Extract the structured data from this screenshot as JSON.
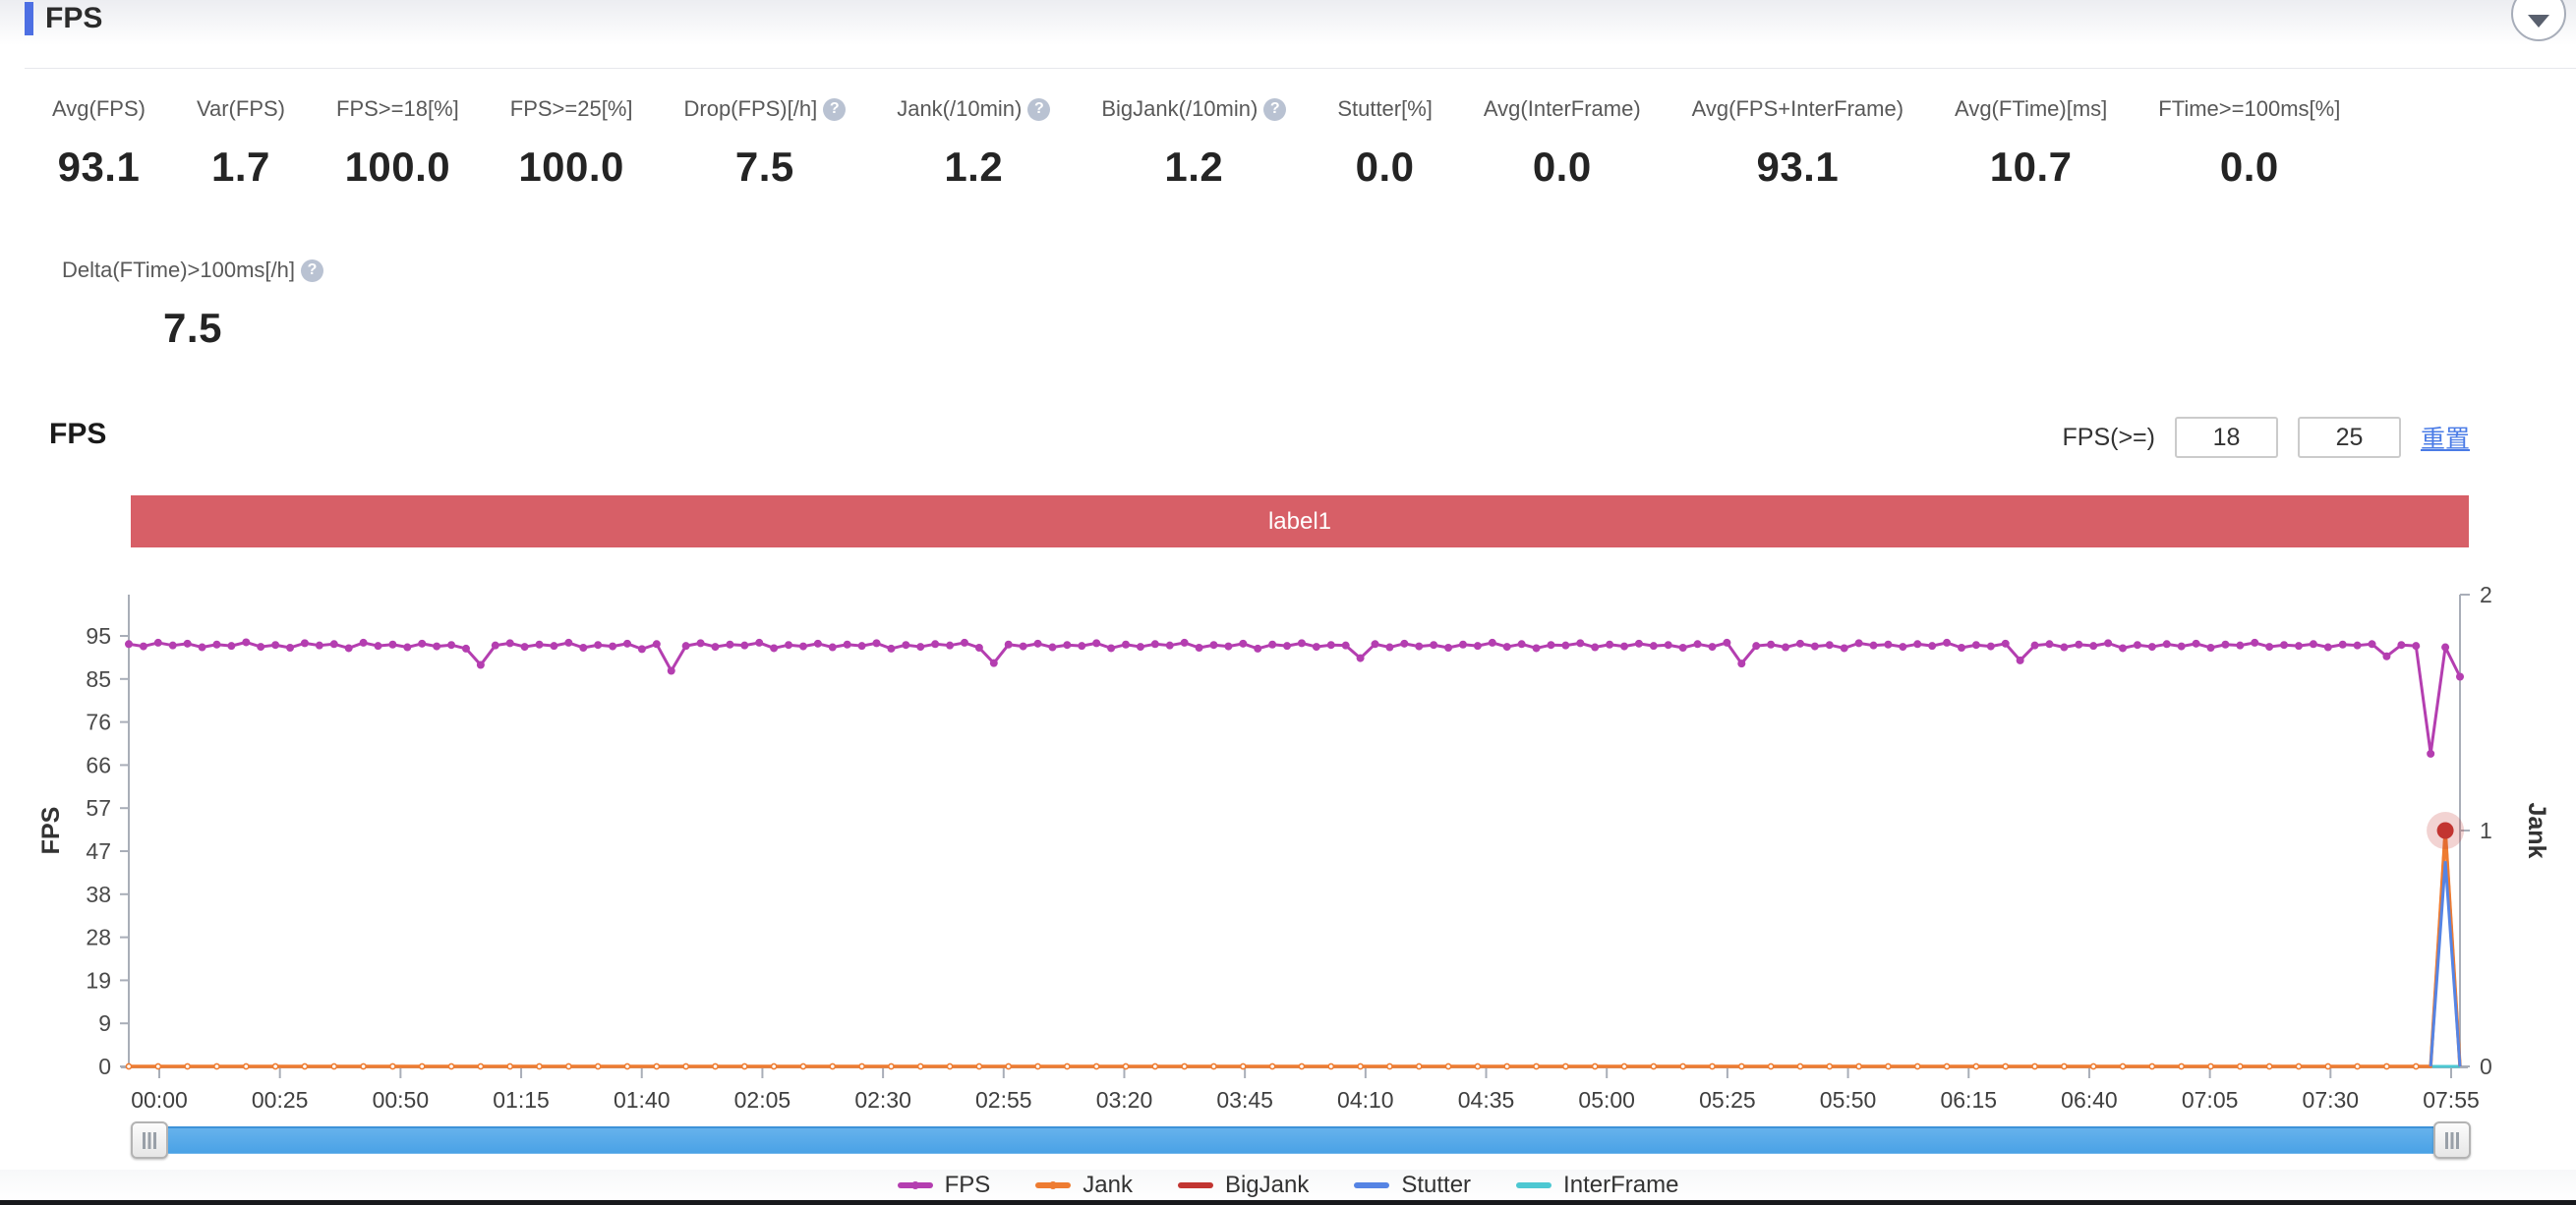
{
  "header": {
    "title": "FPS",
    "collapse_icon": "chevron-down"
  },
  "metrics": {
    "row1": [
      {
        "label": "Avg(FPS)",
        "value": "93.1",
        "help": false
      },
      {
        "label": "Var(FPS)",
        "value": "1.7",
        "help": false
      },
      {
        "label": "FPS>=18[%]",
        "value": "100.0",
        "help": false
      },
      {
        "label": "FPS>=25[%]",
        "value": "100.0",
        "help": false
      },
      {
        "label": "Drop(FPS)[/h]",
        "value": "7.5",
        "help": true
      },
      {
        "label": "Jank(/10min)",
        "value": "1.2",
        "help": true
      },
      {
        "label": "BigJank(/10min)",
        "value": "1.2",
        "help": true
      },
      {
        "label": "Stutter[%]",
        "value": "0.0",
        "help": false
      },
      {
        "label": "Avg(InterFrame)",
        "value": "0.0",
        "help": false
      },
      {
        "label": "Avg(FPS+InterFrame)",
        "value": "93.1",
        "help": false
      },
      {
        "label": "Avg(FTime)[ms]",
        "value": "10.7",
        "help": false
      },
      {
        "label": "FTime>=100ms[%]",
        "value": "0.0",
        "help": false
      }
    ],
    "row2": [
      {
        "label": "Delta(FTime)>100ms[/h]",
        "value": "7.5",
        "help": true
      }
    ]
  },
  "chart_controls": {
    "section_title": "FPS",
    "threshold_label": "FPS(>=)",
    "threshold_low": "18",
    "threshold_high": "25",
    "reset_label": "重置"
  },
  "banner": {
    "text": "label1",
    "color": "#d75f67"
  },
  "chart_data": {
    "type": "line",
    "title": "FPS",
    "x_ticks": [
      "00:00",
      "00:25",
      "00:50",
      "01:15",
      "01:40",
      "02:05",
      "02:30",
      "02:55",
      "03:20",
      "03:45",
      "04:10",
      "04:35",
      "05:00",
      "05:25",
      "05:50",
      "06:15",
      "06:40",
      "07:05",
      "07:30",
      "07:55"
    ],
    "y_left": {
      "name": "FPS",
      "ticks": [
        0,
        9,
        19,
        28,
        38,
        47,
        57,
        66,
        76,
        85,
        95
      ],
      "max": 95
    },
    "y_right": {
      "name": "Jank",
      "ticks": [
        0,
        1,
        2
      ],
      "max": 2
    },
    "grid": false,
    "legend_position": "bottom",
    "series": [
      {
        "name": "FPS",
        "color": "#b43eb0",
        "axis": "left",
        "values": [
          93.2,
          92.7,
          93.5,
          92.9,
          93.3,
          92.5,
          93.1,
          92.8,
          93.6,
          92.6,
          93.0,
          92.4,
          93.4,
          92.9,
          93.2,
          92.3,
          93.5,
          92.8,
          93.1,
          92.5,
          93.3,
          92.7,
          93.0,
          92.2,
          88.6,
          92.9,
          93.4,
          92.6,
          93.1,
          92.8,
          93.5,
          92.4,
          93.0,
          92.7,
          93.3,
          92.1,
          93.2,
          87.3,
          92.8,
          93.4,
          92.6,
          93.1,
          92.9,
          93.5,
          92.3,
          93.0,
          92.7,
          93.3,
          92.5,
          93.1,
          92.8,
          93.4,
          92.2,
          93.0,
          92.6,
          93.2,
          92.9,
          93.5,
          92.4,
          89.0,
          93.1,
          92.7,
          93.3,
          92.5,
          93.0,
          92.8,
          93.4,
          92.3,
          93.1,
          92.6,
          93.2,
          92.9,
          93.5,
          92.4,
          93.0,
          92.7,
          93.3,
          92.2,
          93.1,
          92.8,
          93.4,
          92.6,
          93.0,
          92.9,
          90.1,
          93.2,
          92.5,
          93.3,
          92.7,
          93.0,
          92.4,
          93.1,
          92.8,
          93.5,
          92.6,
          93.2,
          92.3,
          93.0,
          92.9,
          93.4,
          92.5,
          93.1,
          92.7,
          93.3,
          92.8,
          93.0,
          92.4,
          93.2,
          92.6,
          93.5,
          88.9,
          92.8,
          93.1,
          92.5,
          93.3,
          92.7,
          93.0,
          92.3,
          93.4,
          92.9,
          93.1,
          92.6,
          93.2,
          92.8,
          93.5,
          92.4,
          93.0,
          92.7,
          93.3,
          89.6,
          92.9,
          93.2,
          92.5,
          93.1,
          92.8,
          93.4,
          92.3,
          93.0,
          92.6,
          93.2,
          92.7,
          93.3,
          92.4,
          93.1,
          92.9,
          93.5,
          92.6,
          93.0,
          92.8,
          93.2,
          92.5,
          93.1,
          92.9,
          93.2,
          90.5,
          93.0,
          92.8,
          69.0,
          92.5,
          86.0
        ]
      },
      {
        "name": "Jank",
        "color": "#ee7c31",
        "axis": "right",
        "base": 0,
        "spikes": [
          {
            "index": 158,
            "value": 1
          }
        ]
      },
      {
        "name": "BigJank",
        "color": "#c23531",
        "axis": "right",
        "base": 0,
        "spikes": [
          {
            "index": 158,
            "value": 1
          }
        ]
      },
      {
        "name": "Stutter",
        "color": "#5584e4",
        "axis": "right",
        "base": 0,
        "spikes": [
          {
            "index": 158,
            "value": 0.87
          }
        ]
      },
      {
        "name": "InterFrame",
        "color": "#4dc8d2",
        "axis": "right",
        "base": 0,
        "spikes": []
      }
    ],
    "emphasis_point": {
      "series": "BigJank",
      "index": 158,
      "value": 1,
      "color": "#c23531"
    },
    "legend": [
      {
        "name": "FPS",
        "color": "#b43eb0",
        "dot": true
      },
      {
        "name": "Jank",
        "color": "#ee7c31",
        "dot": true
      },
      {
        "name": "BigJank",
        "color": "#c23531",
        "dot": false
      },
      {
        "name": "Stutter",
        "color": "#5584e4",
        "dot": false
      },
      {
        "name": "InterFrame",
        "color": "#4dc8d2",
        "dot": false
      }
    ]
  }
}
